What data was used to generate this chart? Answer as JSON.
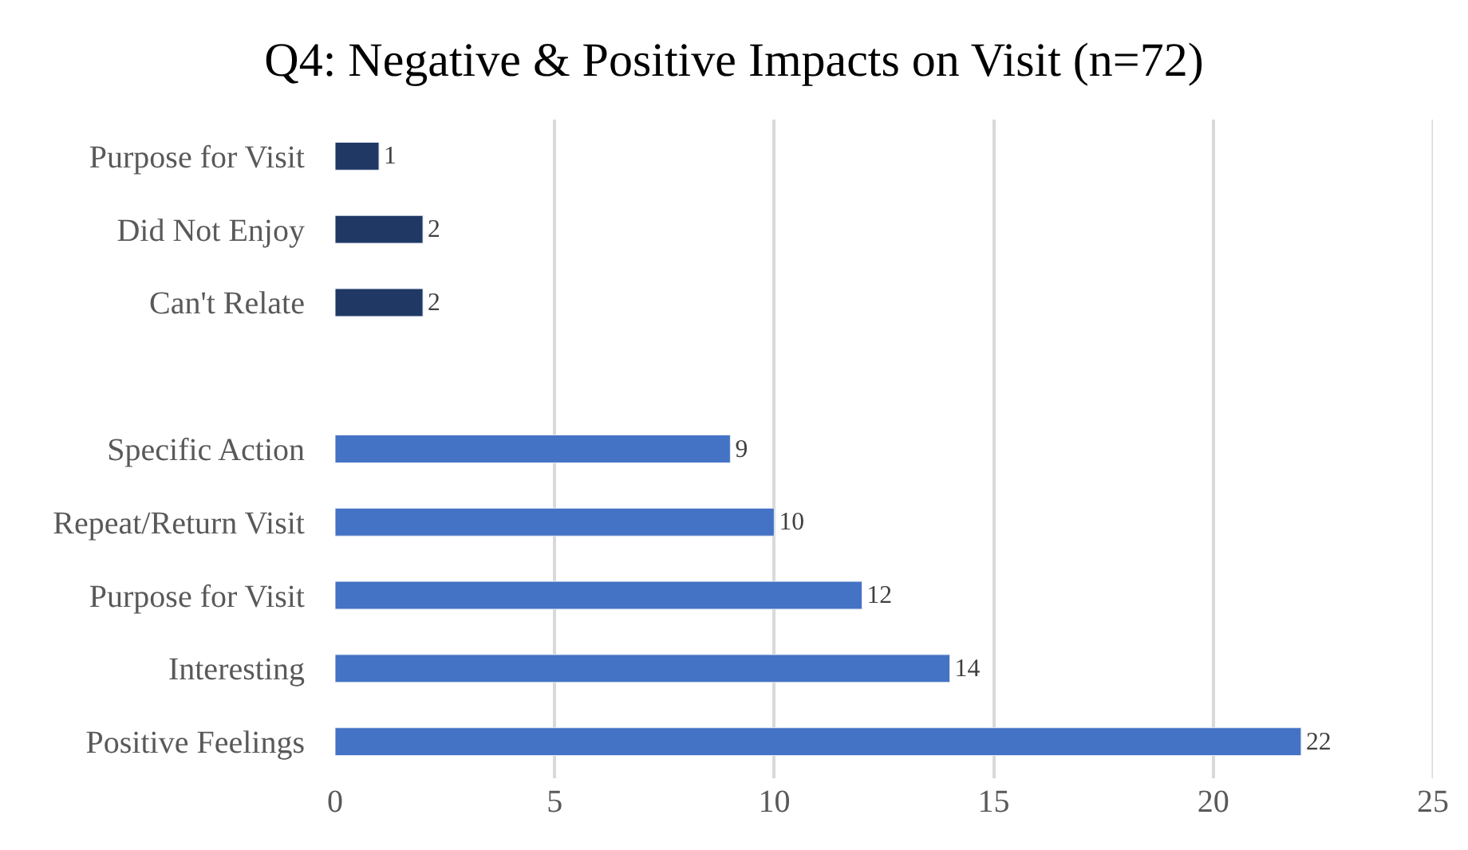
{
  "chart_data": {
    "type": "bar",
    "orientation": "horizontal",
    "title": "Q4: Negative & Positive Impacts on Visit (n=72)",
    "categories": [
      "Purpose for Visit",
      "Did Not Enjoy",
      "Can't Relate",
      null,
      "Specific Action",
      "Repeat/Return Visit",
      "Purpose for Visit",
      "Interesting",
      "Positive Feelings"
    ],
    "values": [
      1,
      2,
      2,
      null,
      9,
      10,
      12,
      14,
      22
    ],
    "colors": [
      "#203864",
      "#203864",
      "#203864",
      null,
      "#4472c4",
      "#4472c4",
      "#4472c4",
      "#4472c4",
      "#4472c4"
    ],
    "xlim": [
      0,
      25
    ],
    "xticks": [
      0,
      5,
      10,
      15,
      20,
      25
    ],
    "grid": "x",
    "data_labels": true
  }
}
